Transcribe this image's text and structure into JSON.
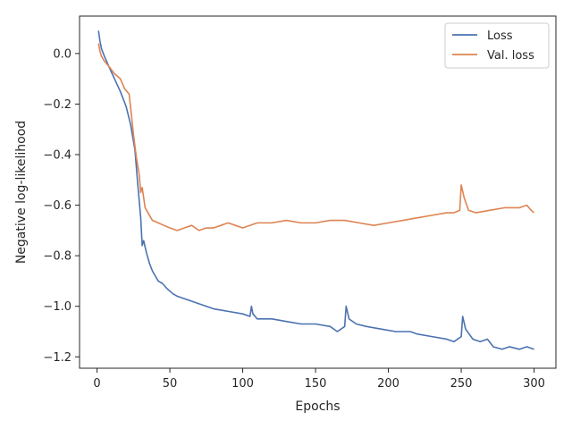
{
  "chart_data": {
    "type": "line",
    "title": "",
    "xlabel": "Epochs",
    "ylabel": "Negative log-likelihood",
    "xlim": [
      -12,
      315
    ],
    "ylim": [
      -1.245,
      0.148
    ],
    "x_ticks": [
      0,
      50,
      100,
      150,
      200,
      250,
      300
    ],
    "y_ticks": [
      -1.2,
      -1.0,
      -0.8,
      -0.6,
      -0.4,
      -0.2,
      0.0
    ],
    "x_tick_labels": [
      "0",
      "50",
      "100",
      "150",
      "200",
      "250",
      "300"
    ],
    "y_tick_labels": [
      "−1.2",
      "−1.0",
      "−0.8",
      "−0.6",
      "−0.4",
      "−0.2",
      "0.0"
    ],
    "grid": false,
    "legend_position": "top-right",
    "series": [
      {
        "name": "Loss",
        "color": "#4c72b0",
        "points": [
          [
            1,
            0.09
          ],
          [
            2,
            0.05
          ],
          [
            3,
            0.02
          ],
          [
            5,
            -0.01
          ],
          [
            8,
            -0.05
          ],
          [
            12,
            -0.1
          ],
          [
            16,
            -0.15
          ],
          [
            20,
            -0.21
          ],
          [
            23,
            -0.28
          ],
          [
            26,
            -0.38
          ],
          [
            28,
            -0.52
          ],
          [
            30,
            -0.65
          ],
          [
            31,
            -0.76
          ],
          [
            32,
            -0.74
          ],
          [
            34,
            -0.79
          ],
          [
            36,
            -0.83
          ],
          [
            38,
            -0.86
          ],
          [
            40,
            -0.88
          ],
          [
            42,
            -0.9
          ],
          [
            45,
            -0.91
          ],
          [
            48,
            -0.93
          ],
          [
            52,
            -0.95
          ],
          [
            55,
            -0.96
          ],
          [
            60,
            -0.97
          ],
          [
            65,
            -0.98
          ],
          [
            70,
            -0.99
          ],
          [
            80,
            -1.01
          ],
          [
            90,
            -1.02
          ],
          [
            100,
            -1.03
          ],
          [
            105,
            -1.04
          ],
          [
            106,
            -1.0
          ],
          [
            107,
            -1.03
          ],
          [
            110,
            -1.05
          ],
          [
            120,
            -1.05
          ],
          [
            130,
            -1.06
          ],
          [
            140,
            -1.07
          ],
          [
            150,
            -1.07
          ],
          [
            160,
            -1.08
          ],
          [
            165,
            -1.1
          ],
          [
            170,
            -1.08
          ],
          [
            171,
            -1.0
          ],
          [
            173,
            -1.05
          ],
          [
            178,
            -1.07
          ],
          [
            185,
            -1.08
          ],
          [
            195,
            -1.09
          ],
          [
            205,
            -1.1
          ],
          [
            215,
            -1.1
          ],
          [
            220,
            -1.11
          ],
          [
            230,
            -1.12
          ],
          [
            240,
            -1.13
          ],
          [
            245,
            -1.14
          ],
          [
            250,
            -1.12
          ],
          [
            251,
            -1.04
          ],
          [
            253,
            -1.09
          ],
          [
            258,
            -1.13
          ],
          [
            263,
            -1.14
          ],
          [
            268,
            -1.13
          ],
          [
            272,
            -1.16
          ],
          [
            278,
            -1.17
          ],
          [
            283,
            -1.16
          ],
          [
            290,
            -1.17
          ],
          [
            295,
            -1.16
          ],
          [
            300,
            -1.17
          ]
        ]
      },
      {
        "name": "Val. loss",
        "color": "#dd8452",
        "points": [
          [
            1,
            0.04
          ],
          [
            2,
            0.01
          ],
          [
            3,
            -0.01
          ],
          [
            5,
            -0.03
          ],
          [
            8,
            -0.05
          ],
          [
            12,
            -0.08
          ],
          [
            16,
            -0.1
          ],
          [
            19,
            -0.14
          ],
          [
            22,
            -0.16
          ],
          [
            23,
            -0.21
          ],
          [
            25,
            -0.32
          ],
          [
            27,
            -0.41
          ],
          [
            29,
            -0.48
          ],
          [
            30,
            -0.55
          ],
          [
            31,
            -0.53
          ],
          [
            33,
            -0.61
          ],
          [
            35,
            -0.63
          ],
          [
            38,
            -0.66
          ],
          [
            42,
            -0.67
          ],
          [
            46,
            -0.68
          ],
          [
            50,
            -0.69
          ],
          [
            55,
            -0.7
          ],
          [
            60,
            -0.69
          ],
          [
            65,
            -0.68
          ],
          [
            70,
            -0.7
          ],
          [
            75,
            -0.69
          ],
          [
            80,
            -0.69
          ],
          [
            85,
            -0.68
          ],
          [
            90,
            -0.67
          ],
          [
            95,
            -0.68
          ],
          [
            100,
            -0.69
          ],
          [
            110,
            -0.67
          ],
          [
            120,
            -0.67
          ],
          [
            130,
            -0.66
          ],
          [
            140,
            -0.67
          ],
          [
            150,
            -0.67
          ],
          [
            160,
            -0.66
          ],
          [
            170,
            -0.66
          ],
          [
            180,
            -0.67
          ],
          [
            190,
            -0.68
          ],
          [
            200,
            -0.67
          ],
          [
            210,
            -0.66
          ],
          [
            220,
            -0.65
          ],
          [
            230,
            -0.64
          ],
          [
            240,
            -0.63
          ],
          [
            245,
            -0.63
          ],
          [
            249,
            -0.62
          ],
          [
            250,
            -0.52
          ],
          [
            252,
            -0.57
          ],
          [
            255,
            -0.62
          ],
          [
            260,
            -0.63
          ],
          [
            270,
            -0.62
          ],
          [
            280,
            -0.61
          ],
          [
            290,
            -0.61
          ],
          [
            295,
            -0.6
          ],
          [
            298,
            -0.62
          ],
          [
            300,
            -0.63
          ]
        ]
      }
    ]
  }
}
